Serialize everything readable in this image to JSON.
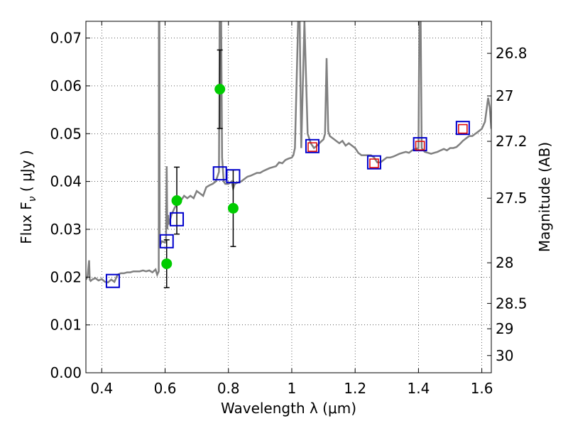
{
  "chart_data": {
    "type": "scatter",
    "xlabel": "Wavelength  λ (μm)",
    "ylabel_main": "Flux  F",
    "ylabel_sub": "ν",
    "ylabel_unit": " ( μJy )",
    "y2label": "Magnitude (AB)",
    "xlim": [
      0.35,
      1.63
    ],
    "ylim": [
      0.0,
      0.0735
    ],
    "grid": true,
    "x_ticks": [
      {
        "value": 0.4,
        "label": "0.4"
      },
      {
        "value": 0.6,
        "label": "0.6"
      },
      {
        "value": 0.8,
        "label": "0.8"
      },
      {
        "value": 1.0,
        "label": "1"
      },
      {
        "value": 1.2,
        "label": "1.2"
      },
      {
        "value": 1.4,
        "label": "1.4"
      },
      {
        "value": 1.6,
        "label": "1.6"
      }
    ],
    "y_ticks": [
      {
        "value": 0.0,
        "label": "0.00"
      },
      {
        "value": 0.01,
        "label": "0.01"
      },
      {
        "value": 0.02,
        "label": "0.02"
      },
      {
        "value": 0.03,
        "label": "0.03"
      },
      {
        "value": 0.04,
        "label": "0.04"
      },
      {
        "value": 0.05,
        "label": "0.05"
      },
      {
        "value": 0.06,
        "label": "0.06"
      },
      {
        "value": 0.07,
        "label": "0.07"
      }
    ],
    "mag_ticks": [
      {
        "flux": 0.0668,
        "label": "26.8"
      },
      {
        "flux": 0.0579,
        "label": "27"
      },
      {
        "flux": 0.0484,
        "label": "27.2"
      },
      {
        "flux": 0.0365,
        "label": "27.5"
      },
      {
        "flux": 0.023,
        "label": "28"
      },
      {
        "flux": 0.0145,
        "label": "28.5"
      },
      {
        "flux": 0.0092,
        "label": "29"
      },
      {
        "flux": 0.0036,
        "label": "30"
      }
    ],
    "model_spectrum": {
      "color": "#808080",
      "x": [
        0.35,
        0.355,
        0.36,
        0.362,
        0.365,
        0.37,
        0.38,
        0.39,
        0.4,
        0.41,
        0.42,
        0.43,
        0.44,
        0.45,
        0.46,
        0.47,
        0.48,
        0.49,
        0.5,
        0.51,
        0.52,
        0.53,
        0.54,
        0.55,
        0.56,
        0.57,
        0.575,
        0.58,
        0.5805,
        0.582,
        0.583,
        0.585,
        0.59,
        0.6,
        0.603,
        0.605,
        0.607,
        0.61,
        0.612,
        0.62,
        0.63,
        0.64,
        0.65,
        0.66,
        0.67,
        0.68,
        0.69,
        0.7,
        0.71,
        0.72,
        0.73,
        0.74,
        0.75,
        0.76,
        0.77,
        0.772,
        0.775,
        0.777,
        0.78,
        0.785,
        0.79,
        0.8,
        0.81,
        0.815,
        0.82,
        0.83,
        0.84,
        0.85,
        0.86,
        0.87,
        0.88,
        0.89,
        0.9,
        0.91,
        0.92,
        0.93,
        0.94,
        0.95,
        0.96,
        0.97,
        0.98,
        0.99,
        1.0,
        1.005,
        1.01,
        1.02,
        1.022,
        1.025,
        1.03,
        1.04,
        1.05,
        1.06,
        1.07,
        1.08,
        1.09,
        1.1,
        1.105,
        1.11,
        1.115,
        1.12,
        1.13,
        1.14,
        1.15,
        1.16,
        1.17,
        1.18,
        1.19,
        1.2,
        1.21,
        1.22,
        1.23,
        1.24,
        1.25,
        1.26,
        1.27,
        1.28,
        1.29,
        1.3,
        1.31,
        1.32,
        1.33,
        1.34,
        1.35,
        1.36,
        1.37,
        1.38,
        1.39,
        1.4,
        1.403,
        1.405,
        1.407,
        1.41,
        1.42,
        1.43,
        1.44,
        1.45,
        1.46,
        1.47,
        1.48,
        1.49,
        1.5,
        1.51,
        1.52,
        1.53,
        1.54,
        1.55,
        1.56,
        1.57,
        1.58,
        1.59,
        1.6,
        1.61,
        1.62,
        1.625,
        1.63
      ],
      "y": [
        0.0195,
        0.02,
        0.0235,
        0.0195,
        0.0192,
        0.0195,
        0.0198,
        0.0193,
        0.0196,
        0.019,
        0.0189,
        0.0195,
        0.019,
        0.0205,
        0.0208,
        0.0208,
        0.021,
        0.021,
        0.0212,
        0.0212,
        0.0212,
        0.0214,
        0.0212,
        0.0214,
        0.021,
        0.0216,
        0.0205,
        0.0212,
        0.0735,
        0.0735,
        0.028,
        0.0268,
        0.0275,
        0.0272,
        0.028,
        0.0432,
        0.03,
        0.033,
        0.031,
        0.033,
        0.0345,
        0.0355,
        0.036,
        0.037,
        0.0365,
        0.037,
        0.0365,
        0.038,
        0.0375,
        0.037,
        0.0388,
        0.0392,
        0.0395,
        0.04,
        0.042,
        0.0735,
        0.0735,
        0.0735,
        0.045,
        0.04,
        0.0395,
        0.0395,
        0.04,
        0.0385,
        0.0395,
        0.0398,
        0.04,
        0.0405,
        0.041,
        0.0412,
        0.0415,
        0.0418,
        0.0418,
        0.0422,
        0.0425,
        0.0428,
        0.043,
        0.0432,
        0.044,
        0.0438,
        0.0445,
        0.0448,
        0.045,
        0.0455,
        0.047,
        0.0735,
        0.0735,
        0.0735,
        0.047,
        0.0735,
        0.05,
        0.048,
        0.047,
        0.0475,
        0.0482,
        0.0488,
        0.05,
        0.0658,
        0.0505,
        0.0495,
        0.049,
        0.0485,
        0.048,
        0.0485,
        0.0475,
        0.048,
        0.0475,
        0.047,
        0.046,
        0.0455,
        0.0455,
        0.0455,
        0.0455,
        0.045,
        0.044,
        0.044,
        0.0445,
        0.045,
        0.045,
        0.0452,
        0.0455,
        0.0458,
        0.046,
        0.0462,
        0.046,
        0.0465,
        0.0468,
        0.047,
        0.0735,
        0.0735,
        0.0735,
        0.047,
        0.0462,
        0.046,
        0.0458,
        0.046,
        0.0462,
        0.0465,
        0.0468,
        0.0465,
        0.047,
        0.047,
        0.0472,
        0.0478,
        0.0485,
        0.049,
        0.0495,
        0.0495,
        0.05,
        0.0505,
        0.051,
        0.0525,
        0.0575,
        0.0555,
        0.051
      ]
    },
    "series": [
      {
        "marker": "square-open",
        "color": "#0000cc",
        "x": [
          0.435,
          0.605,
          0.637,
          0.773,
          0.815,
          1.065,
          1.26,
          1.405,
          1.54
        ],
        "y": [
          0.0192,
          0.0275,
          0.0321,
          0.0417,
          0.0411,
          0.0474,
          0.044,
          0.0478,
          0.0512
        ]
      },
      {
        "marker": "square-open",
        "color": "#dd0000",
        "x": [
          1.065,
          1.26,
          1.405,
          1.54
        ],
        "y": [
          0.0472,
          0.0438,
          0.0475,
          0.051
        ]
      },
      {
        "marker": "circle-filled",
        "color": "#00cc00",
        "x": [
          0.605,
          0.637,
          0.773,
          0.815
        ],
        "y": [
          0.0228,
          0.036,
          0.0593,
          0.0344
        ],
        "yerr": [
          0.005,
          0.007,
          0.0082,
          0.008
        ]
      }
    ]
  }
}
